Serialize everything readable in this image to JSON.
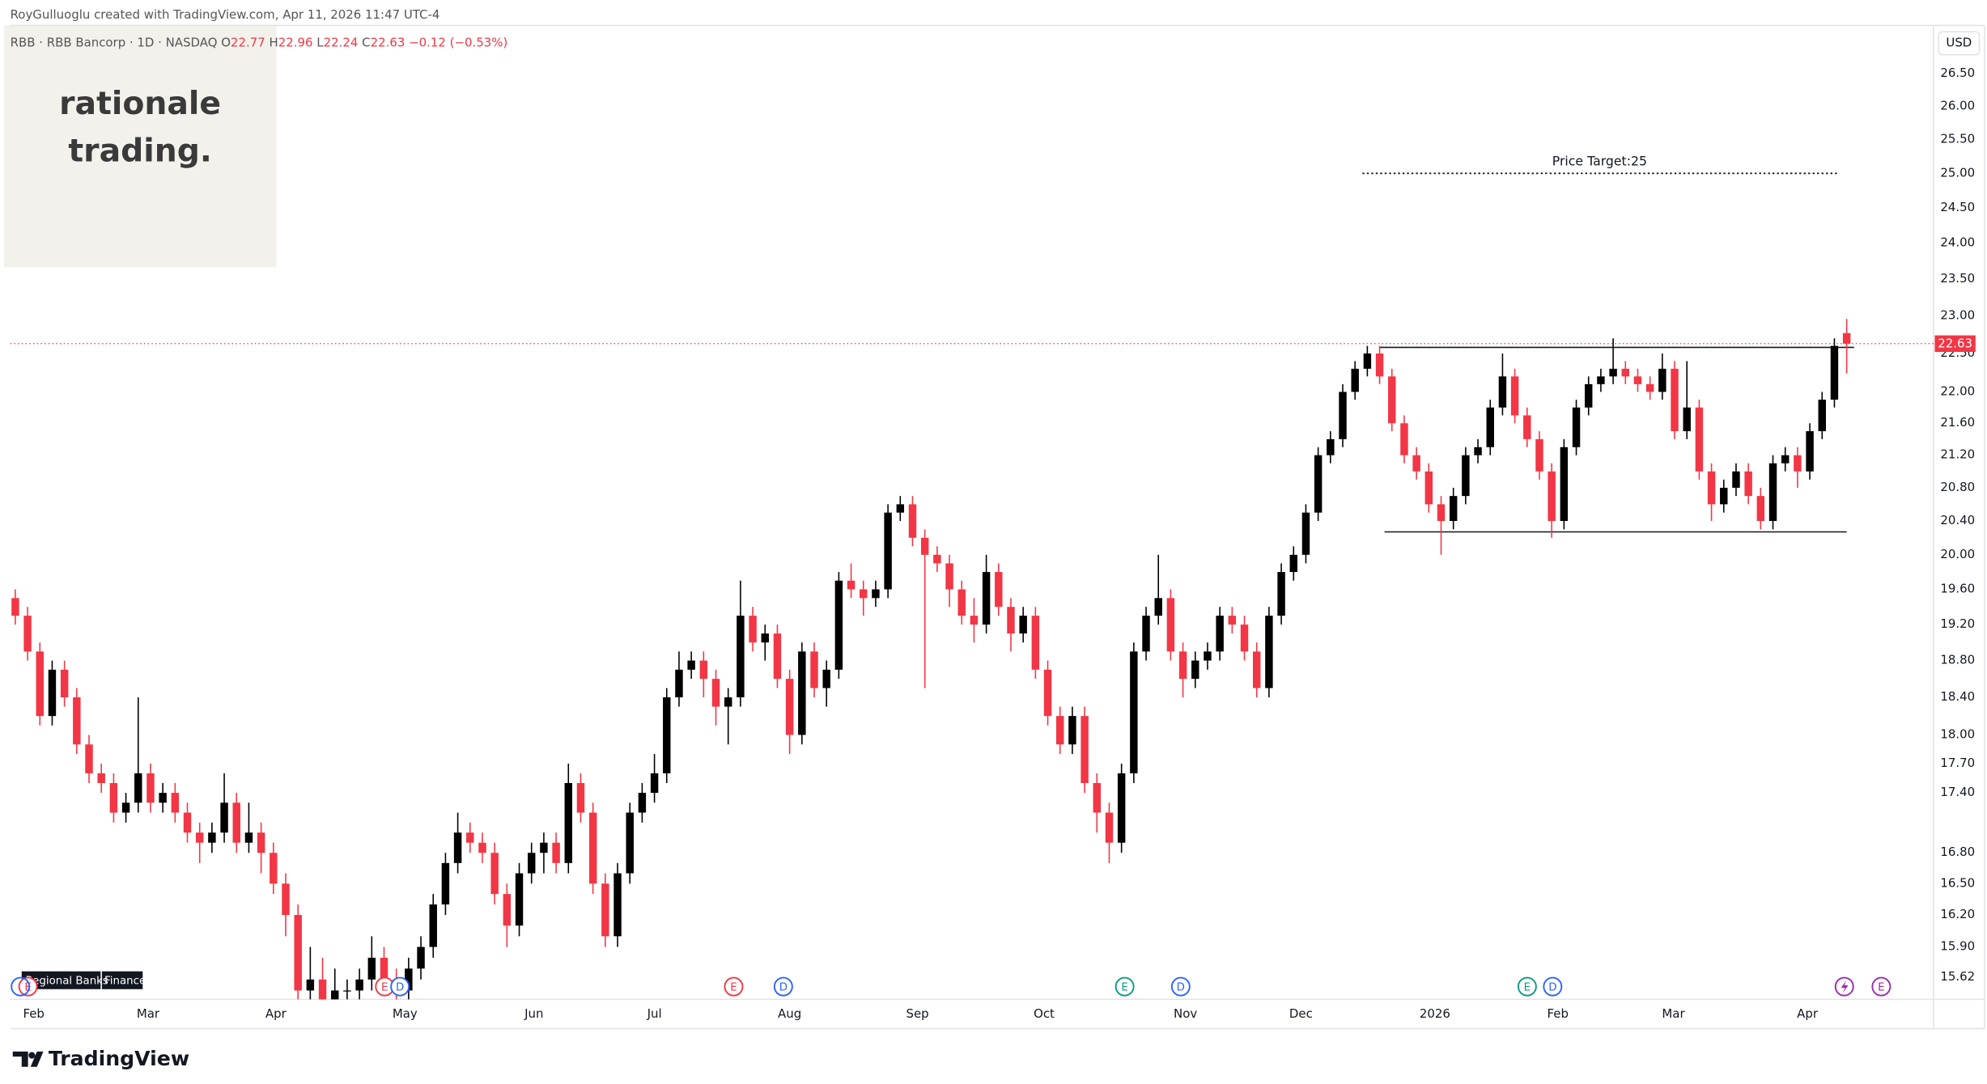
{
  "chart_data": {
    "type": "candlestick",
    "attribution": "RoyGulluoglu created with TradingView.com, Apr 11, 2026 11:47 UTC-4",
    "symbol": "RBB · RBB Bancorp · 1D · NASDAQ",
    "ohlc_prefixes": [
      "O",
      "H",
      "L",
      "C"
    ],
    "change": "−0.12 (−0.53%)",
    "currency": "USD",
    "watermark": [
      "rationale",
      "trading."
    ],
    "industry": [
      "Regional Banks",
      "Finance"
    ],
    "brand": "TradingView",
    "up_color": "#000000",
    "down_color": "#f23645",
    "log_scale": true,
    "grid": false,
    "ylim": [
      15.42,
      27.26
    ],
    "yticks": [
      {
        "value": 26.5,
        "label": "26.50"
      },
      {
        "value": 26,
        "label": "26.00"
      },
      {
        "value": 25.5,
        "label": "25.50"
      },
      {
        "value": 25,
        "label": "25.00"
      },
      {
        "value": 24.5,
        "label": "24.50"
      },
      {
        "value": 24,
        "label": "24.00"
      },
      {
        "value": 23.5,
        "label": "23.50"
      },
      {
        "value": 23,
        "label": "23.00"
      },
      {
        "value": 22.5,
        "label": "22.50"
      },
      {
        "value": 22,
        "label": "22.00"
      },
      {
        "value": 21.6,
        "label": "21.60"
      },
      {
        "value": 21.2,
        "label": "21.20"
      },
      {
        "value": 20.8,
        "label": "20.80"
      },
      {
        "value": 20.4,
        "label": "20.40"
      },
      {
        "value": 20,
        "label": "20.00"
      },
      {
        "value": 19.6,
        "label": "19.60"
      },
      {
        "value": 19.2,
        "label": "19.20"
      },
      {
        "value": 18.8,
        "label": "18.80"
      },
      {
        "value": 18.4,
        "label": "18.40"
      },
      {
        "value": 18,
        "label": "18.00"
      },
      {
        "value": 17.7,
        "label": "17.70"
      },
      {
        "value": 17.4,
        "label": "17.40"
      },
      {
        "value": 16.8,
        "label": "16.80"
      },
      {
        "value": 16.5,
        "label": "16.50"
      },
      {
        "value": 16.2,
        "label": "16.20"
      },
      {
        "value": 15.9,
        "label": "15.90"
      },
      15.62
    ],
    "xticks": [
      {
        "value": 1.5,
        "label": "Feb"
      },
      {
        "value": 10.8,
        "label": "Mar"
      },
      {
        "value": 21.2,
        "label": "Apr"
      },
      {
        "value": 31.7,
        "label": "May"
      },
      {
        "value": 42.2,
        "label": "Jun"
      },
      {
        "value": 52,
        "label": "Jul"
      },
      {
        "value": 63,
        "label": "Aug"
      },
      {
        "value": 73.4,
        "label": "Sep"
      },
      {
        "value": 83.7,
        "label": "Oct"
      },
      {
        "value": 95.2,
        "label": "Nov"
      },
      {
        "value": 104.6,
        "label": "Dec"
      },
      {
        "value": 115.5,
        "label": "2026"
      },
      {
        "value": 125.5,
        "label": "Feb"
      },
      {
        "value": 134.9,
        "label": "Mar"
      },
      {
        "value": 145.8,
        "label": "Apr"
      }
    ],
    "open": [
      19.5,
      19.3,
      18.9,
      18.2,
      18.7,
      18.4,
      17.9,
      17.6,
      17.5,
      17.2,
      17.3,
      17.6,
      17.3,
      17.4,
      17.2,
      17.0,
      16.9,
      17.0,
      17.3,
      16.9,
      17.0,
      16.8,
      16.5,
      16.2,
      15.5,
      15.6,
      15.4,
      15.5,
      15.5,
      15.6,
      15.8,
      15.6,
      15.5,
      15.7,
      15.9,
      16.3,
      16.7,
      17.0,
      16.9,
      16.8,
      16.4,
      16.1,
      16.6,
      16.8,
      16.9,
      16.7,
      17.5,
      17.2,
      16.5,
      16.0,
      16.6,
      17.2,
      17.4,
      17.6,
      18.4,
      18.7,
      18.8,
      18.6,
      18.3,
      18.4,
      19.3,
      19.0,
      19.1,
      18.6,
      18.0,
      18.9,
      18.5,
      18.7,
      19.7,
      19.6,
      19.5,
      19.6,
      20.5,
      20.6,
      20.2,
      20.0,
      19.9,
      19.6,
      19.3,
      19.2,
      19.8,
      19.4,
      19.1,
      19.3,
      18.7,
      18.2,
      17.9,
      18.2,
      17.5,
      17.2,
      16.9,
      17.6,
      18.9,
      19.3,
      19.5,
      18.9,
      18.6,
      18.8,
      18.9,
      19.3,
      19.2,
      18.9,
      18.5,
      19.3,
      19.8,
      20.0,
      20.5,
      21.2,
      21.4,
      22.0,
      22.3,
      22.5,
      22.2,
      21.6,
      21.2,
      21.0,
      20.6,
      20.4,
      20.7,
      21.2,
      21.3,
      21.8,
      22.2,
      21.7,
      21.4,
      21.0,
      20.4,
      21.3,
      21.8,
      22.1,
      22.2,
      22.3,
      22.2,
      22.1,
      22.0,
      22.3,
      21.5,
      21.8,
      21.0,
      20.6,
      20.8,
      21.0,
      20.7,
      20.4,
      21.1,
      21.2,
      21.0,
      21.5,
      21.9,
      22.77
    ],
    "high": [
      19.6,
      19.4,
      19.0,
      18.8,
      18.8,
      18.5,
      18.0,
      17.7,
      17.6,
      17.4,
      18.4,
      17.7,
      17.5,
      17.5,
      17.3,
      17.1,
      17.1,
      17.6,
      17.4,
      17.3,
      17.1,
      16.9,
      16.6,
      16.3,
      15.9,
      15.8,
      15.7,
      15.6,
      15.7,
      16.0,
      15.9,
      15.7,
      15.8,
      16.0,
      16.4,
      16.8,
      17.2,
      17.1,
      17.0,
      16.9,
      16.5,
      16.7,
      16.9,
      17.0,
      17.0,
      17.7,
      17.6,
      17.3,
      16.6,
      16.7,
      17.3,
      17.5,
      17.8,
      18.5,
      18.9,
      18.9,
      18.9,
      18.7,
      18.5,
      19.7,
      19.4,
      19.2,
      19.2,
      18.7,
      19.0,
      19.0,
      18.8,
      19.8,
      19.9,
      19.7,
      19.7,
      20.6,
      20.7,
      20.7,
      20.3,
      20.1,
      20.0,
      19.7,
      19.5,
      20.0,
      19.9,
      19.5,
      19.4,
      19.4,
      18.8,
      18.3,
      18.3,
      18.3,
      17.6,
      17.3,
      17.7,
      19.0,
      19.4,
      20.0,
      19.6,
      19.0,
      18.9,
      19.0,
      19.4,
      19.4,
      19.3,
      19.0,
      19.4,
      19.9,
      20.1,
      20.6,
      21.3,
      21.5,
      22.1,
      22.4,
      22.6,
      22.6,
      22.3,
      21.7,
      21.3,
      21.1,
      20.7,
      20.8,
      21.3,
      21.4,
      21.9,
      22.5,
      22.3,
      21.8,
      21.5,
      21.1,
      21.4,
      21.9,
      22.2,
      22.3,
      22.7,
      22.4,
      22.3,
      22.2,
      22.5,
      22.4,
      22.4,
      21.9,
      21.1,
      20.9,
      21.1,
      21.1,
      20.8,
      21.2,
      21.3,
      21.3,
      21.6,
      22.0,
      22.7,
      22.96
    ],
    "low": [
      19.2,
      18.8,
      18.1,
      18.1,
      18.3,
      17.8,
      17.5,
      17.4,
      17.1,
      17.1,
      17.2,
      17.2,
      17.2,
      17.1,
      16.9,
      16.7,
      16.8,
      16.9,
      16.8,
      16.8,
      16.6,
      16.4,
      16.0,
      15.4,
      15.4,
      15.3,
      15.3,
      15.4,
      15.4,
      15.5,
      15.5,
      15.4,
      15.4,
      15.6,
      15.8,
      16.2,
      16.6,
      16.8,
      16.7,
      16.3,
      15.9,
      16.0,
      16.5,
      16.6,
      16.6,
      16.6,
      17.1,
      16.4,
      15.9,
      15.9,
      16.5,
      17.1,
      17.3,
      17.5,
      18.3,
      18.6,
      18.4,
      18.1,
      17.9,
      18.3,
      18.9,
      18.8,
      18.5,
      17.8,
      17.9,
      18.4,
      18.3,
      18.6,
      19.5,
      19.3,
      19.4,
      19.5,
      20.4,
      20.1,
      18.5,
      19.8,
      19.4,
      19.2,
      19.0,
      19.1,
      19.3,
      18.9,
      19.0,
      18.6,
      18.1,
      17.8,
      17.8,
      17.4,
      17.0,
      16.7,
      16.8,
      17.5,
      18.8,
      19.2,
      18.8,
      18.4,
      18.5,
      18.7,
      18.8,
      19.1,
      18.8,
      18.4,
      18.4,
      19.2,
      19.7,
      19.9,
      20.4,
      21.1,
      21.3,
      21.9,
      22.2,
      22.1,
      21.5,
      21.1,
      20.9,
      20.5,
      20.0,
      20.3,
      20.6,
      21.1,
      21.2,
      21.7,
      21.6,
      21.3,
      20.9,
      20.2,
      20.3,
      21.2,
      21.7,
      22.0,
      22.1,
      22.1,
      22.0,
      21.9,
      21.9,
      21.4,
      21.4,
      20.9,
      20.4,
      20.5,
      20.7,
      20.6,
      20.3,
      20.3,
      21.0,
      20.8,
      20.9,
      21.4,
      21.8,
      22.24
    ],
    "close": [
      19.3,
      18.9,
      18.2,
      18.7,
      18.4,
      17.9,
      17.6,
      17.5,
      17.2,
      17.3,
      17.6,
      17.3,
      17.4,
      17.2,
      17.0,
      16.9,
      17.0,
      17.3,
      16.9,
      17.0,
      16.8,
      16.5,
      16.2,
      15.5,
      15.6,
      15.4,
      15.5,
      15.5,
      15.6,
      15.8,
      15.6,
      15.5,
      15.7,
      15.9,
      16.3,
      16.7,
      17.0,
      16.9,
      16.8,
      16.4,
      16.1,
      16.6,
      16.8,
      16.9,
      16.7,
      17.5,
      17.2,
      16.5,
      16.0,
      16.6,
      17.2,
      17.4,
      17.6,
      18.4,
      18.7,
      18.8,
      18.6,
      18.3,
      18.4,
      19.3,
      19.0,
      19.1,
      18.6,
      18.0,
      18.9,
      18.5,
      18.7,
      19.7,
      19.6,
      19.5,
      19.6,
      20.5,
      20.6,
      20.2,
      20.0,
      19.9,
      19.6,
      19.3,
      19.2,
      19.8,
      19.4,
      19.1,
      19.3,
      18.7,
      18.2,
      17.9,
      18.2,
      17.5,
      17.2,
      16.9,
      17.6,
      18.9,
      19.3,
      19.5,
      18.9,
      18.6,
      18.8,
      18.9,
      19.3,
      19.2,
      18.9,
      18.5,
      19.3,
      19.8,
      20.0,
      20.5,
      21.2,
      21.4,
      22.0,
      22.3,
      22.5,
      22.2,
      21.6,
      21.2,
      21.0,
      20.6,
      20.4,
      20.7,
      21.2,
      21.3,
      21.8,
      22.2,
      21.7,
      21.4,
      21.0,
      20.4,
      21.3,
      21.8,
      22.1,
      22.2,
      22.3,
      22.2,
      22.1,
      22.0,
      22.3,
      21.5,
      21.8,
      21.0,
      20.6,
      20.8,
      21.0,
      20.7,
      20.4,
      21.1,
      21.2,
      21.0,
      21.5,
      21.9,
      22.6,
      22.63
    ],
    "annotations": [
      {
        "label": "Price Target:25",
        "price": 25
      }
    ],
    "levels": [
      22.58,
      20.27
    ],
    "events": [
      {
        "letter": "E",
        "color": "#f23645"
      },
      {
        "letter": "E",
        "color": "#f23645"
      },
      {
        "letter": "D",
        "color": "#2962ff"
      },
      {
        "letter": "E",
        "color": "#f23645"
      },
      {
        "letter": "D",
        "color": "#2962ff"
      },
      {
        "letter": "E",
        "color": "#089981"
      },
      {
        "letter": "D",
        "color": "#2962ff"
      },
      {
        "letter": "E",
        "color": "#089981"
      },
      {
        "letter": "D",
        "color": "#2962ff"
      },
      {
        "letter": "E",
        "color": "#9c27b0"
      }
    ]
  }
}
